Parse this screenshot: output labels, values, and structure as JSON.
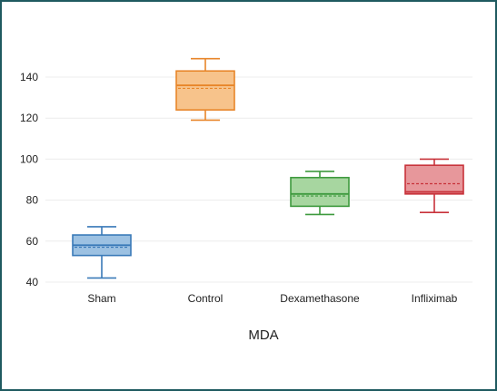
{
  "chart_data": {
    "type": "box",
    "xlabel": "MDA",
    "ylabel": "",
    "ylim": [
      37,
      152
    ],
    "yticks": [
      40,
      60,
      80,
      100,
      120,
      140
    ],
    "grid": true,
    "legend": "none",
    "categories": [
      "Sham",
      "Control",
      "Dexamethasone",
      "Infliximab"
    ],
    "boxes": [
      {
        "category": "Sham",
        "min": 42,
        "q1": 53,
        "median": 58,
        "q3": 63,
        "max": 67,
        "mean": 57,
        "color": "#3a7ab8",
        "fill": "#9cc1e2"
      },
      {
        "category": "Control",
        "min": 119,
        "q1": 124,
        "median": 136,
        "q3": 143,
        "max": 149,
        "mean": 134.5,
        "color": "#e8862a",
        "fill": "#f7c38b"
      },
      {
        "category": "Dexamethasone",
        "min": 73,
        "q1": 77,
        "median": 83,
        "q3": 91,
        "max": 94,
        "mean": 82,
        "color": "#3e9a3e",
        "fill": "#a7d6a0"
      },
      {
        "category": "Infliximab",
        "min": 74,
        "q1": 83,
        "median": 84,
        "q3": 97,
        "max": 100,
        "mean": 88,
        "color": "#c8323a",
        "fill": "#e7979b"
      }
    ]
  }
}
